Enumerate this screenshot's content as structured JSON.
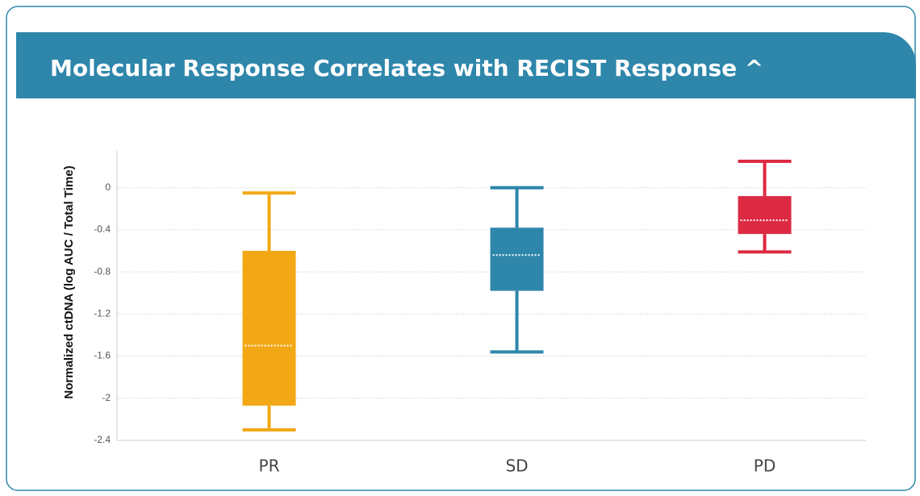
{
  "chart_data": {
    "type": "box",
    "title": "Molecular Response Correlates with RECIST Response ^",
    "y_label": "Normalized ctDNA (log AUC / Total Time)",
    "categories": [
      "PR",
      "SD",
      "PD"
    ],
    "boxes": [
      {
        "min": -2.3,
        "q1": -2.07,
        "median": -1.5,
        "q3": -0.6,
        "max": -0.05,
        "color": "#f2a815"
      },
      {
        "min": -1.56,
        "q1": -0.98,
        "median": -0.64,
        "q3": -0.38,
        "max": 0,
        "color": "#2e86ab"
      },
      {
        "min": -0.61,
        "q1": -0.44,
        "median": -0.31,
        "q3": -0.08,
        "max": 0.25,
        "color": "#dc2a43"
      }
    ],
    "ylim": [
      -2.4,
      0.35
    ],
    "yticks": [
      0,
      -0.4,
      -0.8,
      -1.2,
      -1.6,
      -2,
      -2.4
    ],
    "grid": true
  }
}
